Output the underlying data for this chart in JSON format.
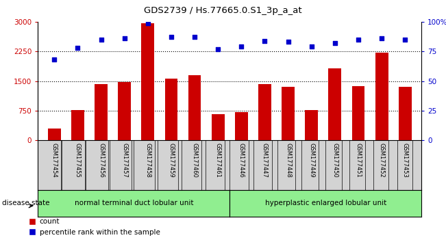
{
  "title": "GDS2739 / Hs.77665.0.S1_3p_a_at",
  "samples": [
    "GSM177454",
    "GSM177455",
    "GSM177456",
    "GSM177457",
    "GSM177458",
    "GSM177459",
    "GSM177460",
    "GSM177461",
    "GSM177446",
    "GSM177447",
    "GSM177448",
    "GSM177449",
    "GSM177450",
    "GSM177451",
    "GSM177452",
    "GSM177453"
  ],
  "counts": [
    300,
    770,
    1420,
    1480,
    2960,
    1570,
    1640,
    660,
    720,
    1420,
    1360,
    760,
    1820,
    1380,
    2220,
    1360
  ],
  "percentiles": [
    68,
    78,
    85,
    86,
    99,
    87,
    87,
    77,
    79,
    84,
    83,
    79,
    82,
    85,
    86,
    85
  ],
  "group1_label": "normal terminal duct lobular unit",
  "group2_label": "hyperplastic enlarged lobular unit",
  "group1_count": 8,
  "group2_count": 8,
  "bar_color": "#cc0000",
  "dot_color": "#0000cc",
  "left_ylim": [
    0,
    3000
  ],
  "right_ylim": [
    0,
    100
  ],
  "left_yticks": [
    0,
    750,
    1500,
    2250,
    3000
  ],
  "right_yticks": [
    0,
    25,
    50,
    75,
    100
  ],
  "right_yticklabels": [
    "0",
    "25",
    "50",
    "75",
    "100%"
  ],
  "group_box_color": "#90ee90",
  "tick_area_color": "#d3d3d3",
  "legend_red_label": "count",
  "legend_blue_label": "percentile rank within the sample",
  "grid_levels": [
    750,
    1500,
    2250
  ]
}
